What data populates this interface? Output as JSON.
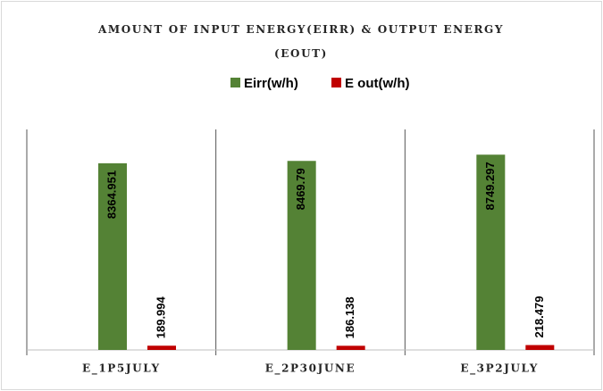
{
  "chart_data": {
    "type": "bar",
    "title": "AMOUNT OF INPUT ENERGY(EIRR) & OUTPUT ENERGY (EOUT)",
    "categories": [
      "E_1P5JULY",
      "E_2P30JUNE",
      "E_3P2JULY"
    ],
    "series": [
      {
        "name": "Eirr(w/h)",
        "color": "#548235",
        "values": [
          8364.951,
          8469.79,
          8749.297
        ]
      },
      {
        "name": "E out(w/h)",
        "color": "#c00000",
        "values": [
          189.994,
          186.138,
          218.479
        ]
      }
    ],
    "ylim": [
      0,
      10000
    ]
  }
}
